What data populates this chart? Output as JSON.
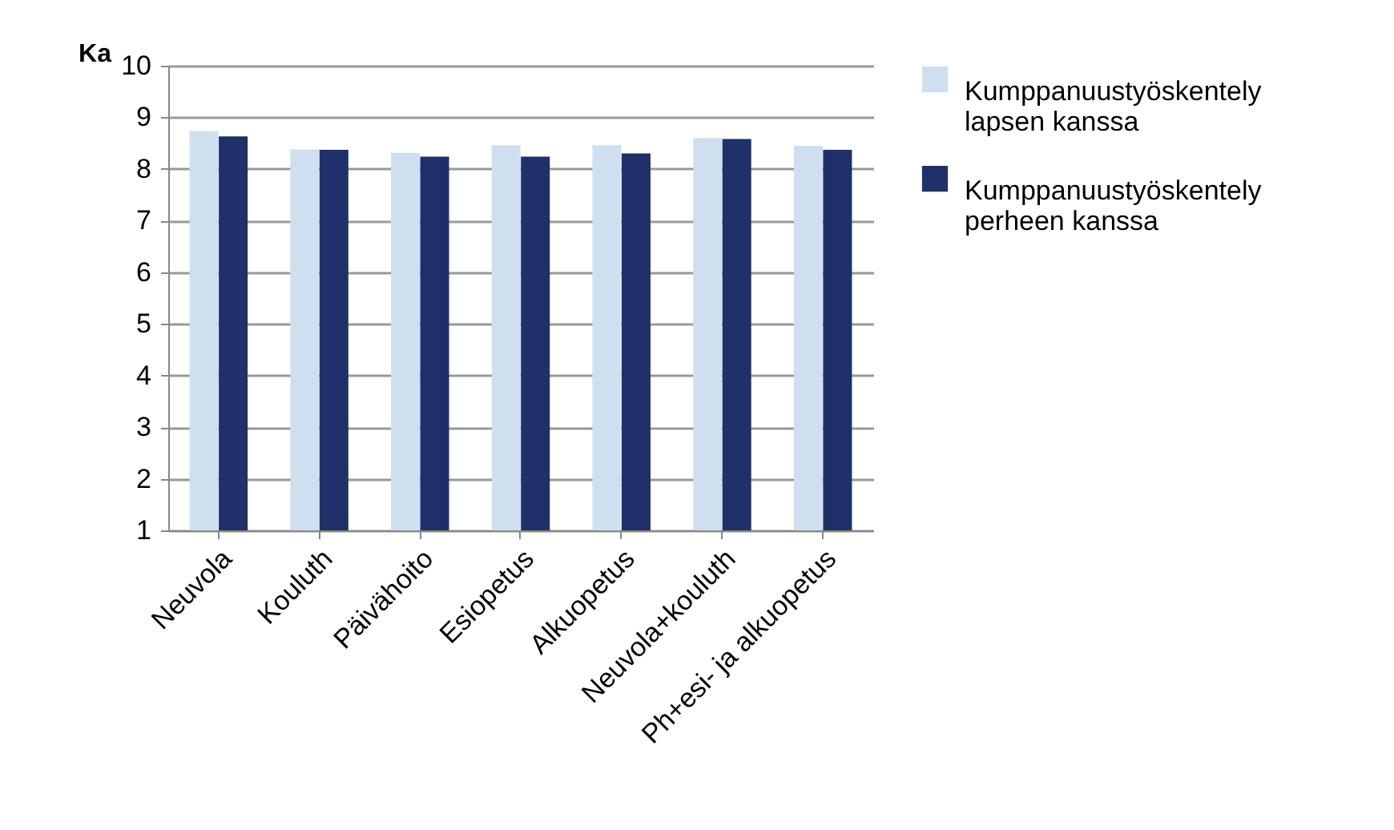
{
  "chart_data": {
    "type": "bar",
    "ylabel": "Ka",
    "categories": [
      "Neuvola",
      "Kouluth",
      "Päivähoito",
      "Esiopetus",
      "Alkuopetus",
      "Neuvola+kouluth",
      "Ph+esi- ja alkuopetus"
    ],
    "series": [
      {
        "name": "Kumppanuustyöskentely lapsen kanssa",
        "color": "#cfdfef",
        "values": [
          8.73,
          8.38,
          8.31,
          8.46,
          8.46,
          8.6,
          8.45
        ]
      },
      {
        "name": "Kumppanuustyöskentely perheen kanssa",
        "color": "#203068",
        "values": [
          8.63,
          8.37,
          8.24,
          8.24,
          8.3,
          8.58,
          8.37
        ]
      }
    ],
    "ylim": [
      1,
      10
    ],
    "yticks": [
      1,
      2,
      3,
      4,
      5,
      6,
      7,
      8,
      9,
      10
    ],
    "grid": "y",
    "legend": "right"
  }
}
